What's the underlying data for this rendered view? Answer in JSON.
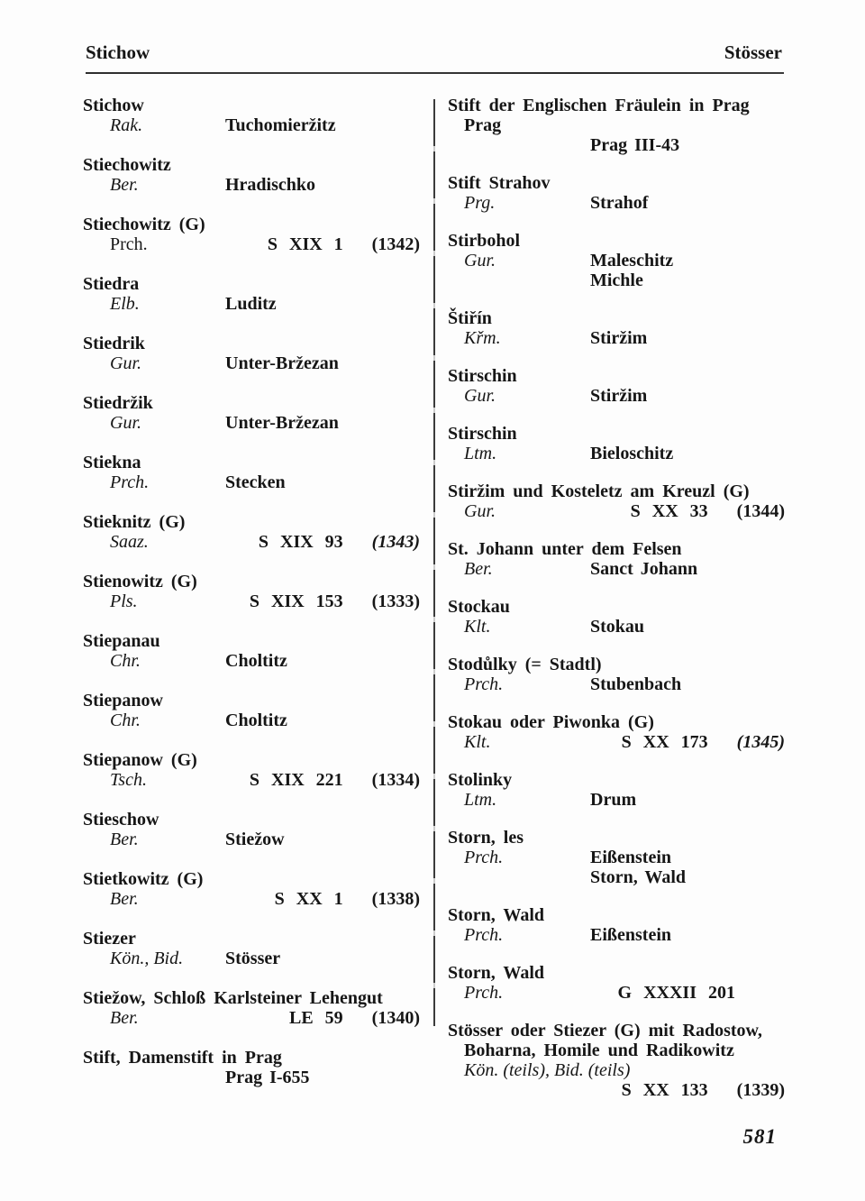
{
  "header": {
    "left": "Stichow",
    "right": "Stösser"
  },
  "page_number": "581",
  "index": {
    "left_entries": [
      {
        "lines": [
          {
            "t": "head",
            "x": "Stichow"
          },
          {
            "t": "ae",
            "a": "Rak.",
            "e": [
              "Tuchomieržitz"
            ]
          }
        ]
      },
      {
        "lines": [
          {
            "t": "head",
            "x": "Stiechowitz"
          },
          {
            "t": "ae",
            "a": "Ber.",
            "e": [
              "Hradischko"
            ]
          }
        ]
      },
      {
        "lines": [
          {
            "t": "head",
            "x": "Stiechowitz (G)"
          },
          {
            "t": "ar",
            "a": "Prch.",
            "ai": false,
            "num": "S XIX 1",
            "yr": "(1342)"
          }
        ]
      },
      {
        "lines": [
          {
            "t": "head",
            "x": "Stiedra"
          },
          {
            "t": "ae",
            "a": "Elb.",
            "e": [
              "Luditz"
            ]
          }
        ]
      },
      {
        "lines": [
          {
            "t": "head",
            "x": "Stiedrik"
          },
          {
            "t": "ae",
            "a": "Gur.",
            "e": [
              "Unter-Bržezan"
            ]
          }
        ]
      },
      {
        "lines": [
          {
            "t": "head",
            "x": "Stiedržik"
          },
          {
            "t": "ae",
            "a": "Gur.",
            "e": [
              "Unter-Bržezan"
            ]
          }
        ]
      },
      {
        "lines": [
          {
            "t": "head",
            "x": "Stiekna"
          },
          {
            "t": "ae",
            "a": "Prch.",
            "e": [
              "Stecken"
            ]
          }
        ]
      },
      {
        "lines": [
          {
            "t": "head",
            "x": "Stieknitz (G)"
          },
          {
            "t": "ar",
            "a": "Saaz.",
            "num": "S XIX 93",
            "yr": "(1343)",
            "yi": true
          }
        ]
      },
      {
        "lines": [
          {
            "t": "head",
            "x": "Stienowitz (G)"
          },
          {
            "t": "ar",
            "a": "Pls.",
            "num": "S XIX 153",
            "yr": "(1333)"
          }
        ]
      },
      {
        "lines": [
          {
            "t": "head",
            "x": "Stiepanau"
          },
          {
            "t": "ae",
            "a": "Chr.",
            "e": [
              "Choltitz"
            ]
          }
        ]
      },
      {
        "lines": [
          {
            "t": "head",
            "x": "Stiepanow"
          },
          {
            "t": "ae",
            "a": "Chr.",
            "e": [
              "Choltitz"
            ]
          }
        ]
      },
      {
        "lines": [
          {
            "t": "head",
            "x": "Stiepanow (G)"
          },
          {
            "t": "ar",
            "a": "Tsch.",
            "num": "S XIX 221",
            "yr": "(1334)"
          }
        ]
      },
      {
        "lines": [
          {
            "t": "head",
            "x": "Stieschow"
          },
          {
            "t": "ae",
            "a": "Ber.",
            "e": [
              "Stiežow"
            ]
          }
        ]
      },
      {
        "lines": [
          {
            "t": "head",
            "x": "Stietkowitz (G)"
          },
          {
            "t": "ar",
            "a": "Ber.",
            "num": "S XX 1",
            "yr": "(1338)"
          }
        ]
      },
      {
        "lines": [
          {
            "t": "head",
            "x": "Stiezer"
          },
          {
            "t": "ae",
            "a": "Kön., Bid.",
            "e": [
              "Stösser"
            ]
          }
        ]
      },
      {
        "lines": [
          {
            "t": "head",
            "x": "Stiežow, Schloß Karlsteiner Lehengut"
          },
          {
            "t": "ar",
            "a": "Ber.",
            "num": "LE 59",
            "yr": "(1340)"
          }
        ]
      },
      {
        "lines": [
          {
            "t": "head",
            "x": "Stift, Damenstift in Prag"
          },
          {
            "t": "val",
            "x": "Prag I-655"
          }
        ]
      }
    ],
    "right_entries": [
      {
        "lines": [
          {
            "t": "head",
            "x": "Stift der Englischen Fräulein in Prag"
          },
          {
            "t": "ae",
            "a": "Prag",
            "ai": false,
            "ab": true,
            "e": []
          },
          {
            "t": "val",
            "x": "Prag III-43"
          }
        ]
      },
      {
        "lines": [
          {
            "t": "head",
            "x": "Stift Strahov"
          },
          {
            "t": "ae",
            "a": "Prg.",
            "e": [
              "Strahof"
            ]
          }
        ]
      },
      {
        "lines": [
          {
            "t": "head",
            "x": "Stirbohol"
          },
          {
            "t": "ae",
            "a": "Gur.",
            "e": [
              "Maleschitz",
              "Michle"
            ]
          }
        ]
      },
      {
        "lines": [
          {
            "t": "head",
            "x": "Štiřín"
          },
          {
            "t": "ae",
            "a": "Křm.",
            "e": [
              "Stiržim"
            ]
          }
        ]
      },
      {
        "lines": [
          {
            "t": "head",
            "x": "Stirschin"
          },
          {
            "t": "ae",
            "a": "Gur.",
            "e": [
              "Stiržim"
            ]
          }
        ]
      },
      {
        "lines": [
          {
            "t": "head",
            "x": "Stirschin"
          },
          {
            "t": "ae",
            "a": "Ltm.",
            "e": [
              "Bieloschitz"
            ]
          }
        ]
      },
      {
        "lines": [
          {
            "t": "head",
            "x": "Stiržim und Kosteletz am Kreuzl (G)"
          },
          {
            "t": "ar",
            "a": "Gur.",
            "num": "S XX 33",
            "yr": "(1344)"
          }
        ]
      },
      {
        "lines": [
          {
            "t": "head",
            "x": "St. Johann unter dem Felsen"
          },
          {
            "t": "ae",
            "a": "Ber.",
            "e": [
              "Sanct Johann"
            ]
          }
        ]
      },
      {
        "lines": [
          {
            "t": "head",
            "x": "Stockau"
          },
          {
            "t": "ae",
            "a": "Klt.",
            "e": [
              "Stokau"
            ]
          }
        ]
      },
      {
        "lines": [
          {
            "t": "head",
            "x": "Stodůlky (= Stadtl)"
          },
          {
            "t": "ae",
            "a": "Prch.",
            "e": [
              "Stubenbach"
            ]
          }
        ]
      },
      {
        "lines": [
          {
            "t": "head",
            "x": "Stokau oder Piwonka (G)"
          },
          {
            "t": "ar",
            "a": "Klt.",
            "num": "S XX 173",
            "yr": "(1345)",
            "yi": true
          }
        ]
      },
      {
        "lines": [
          {
            "t": "head",
            "x": "Stolinky"
          },
          {
            "t": "ae",
            "a": "Ltm.",
            "e": [
              "Drum"
            ]
          }
        ]
      },
      {
        "lines": [
          {
            "t": "head",
            "x": "Storn, les"
          },
          {
            "t": "ae",
            "a": "Prch.",
            "e": [
              "Eißenstein",
              "Storn, Wald"
            ]
          }
        ]
      },
      {
        "lines": [
          {
            "t": "head",
            "x": "Storn, Wald"
          },
          {
            "t": "ae",
            "a": "Prch.",
            "e": [
              "Eißenstein"
            ]
          }
        ]
      },
      {
        "lines": [
          {
            "t": "head",
            "x": "Storn, Wald"
          },
          {
            "t": "ar",
            "a": "Prch.",
            "num": "G XXXII 201",
            "yr": "",
            "short": true
          }
        ]
      },
      {
        "lines": [
          {
            "t": "head",
            "x": "Stösser oder Stiezer (G) mit Radostow,"
          },
          {
            "t": "head",
            "x": "Boharna, Homile und Radikowitz",
            "ind": true
          },
          {
            "t": "ae",
            "a": "Kön. (teils), Bid. (teils)",
            "e": []
          },
          {
            "t": "ref",
            "num": "S XX 133",
            "yr": "(1339)"
          }
        ]
      }
    ]
  }
}
